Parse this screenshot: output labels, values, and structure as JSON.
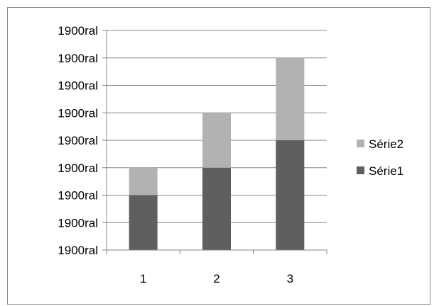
{
  "chart_data": {
    "type": "bar",
    "stacked": true,
    "categories": [
      "1",
      "2",
      "3"
    ],
    "series": [
      {
        "name": "Série1",
        "values": [
          2,
          3,
          4
        ],
        "color": "#5f5f5f"
      },
      {
        "name": "Série2",
        "values": [
          1,
          2,
          3
        ],
        "color": "#b2b2b2"
      }
    ],
    "y_tick_labels": [
      "1900ral",
      "1900ral",
      "1900ral",
      "1900ral",
      "1900ral",
      "1900ral",
      "1900ral",
      "1900ral",
      "1900ral"
    ],
    "ylim": [
      0,
      8
    ],
    "grid": true,
    "legend_position": "right",
    "title": "",
    "xlabel": "",
    "ylabel": ""
  }
}
